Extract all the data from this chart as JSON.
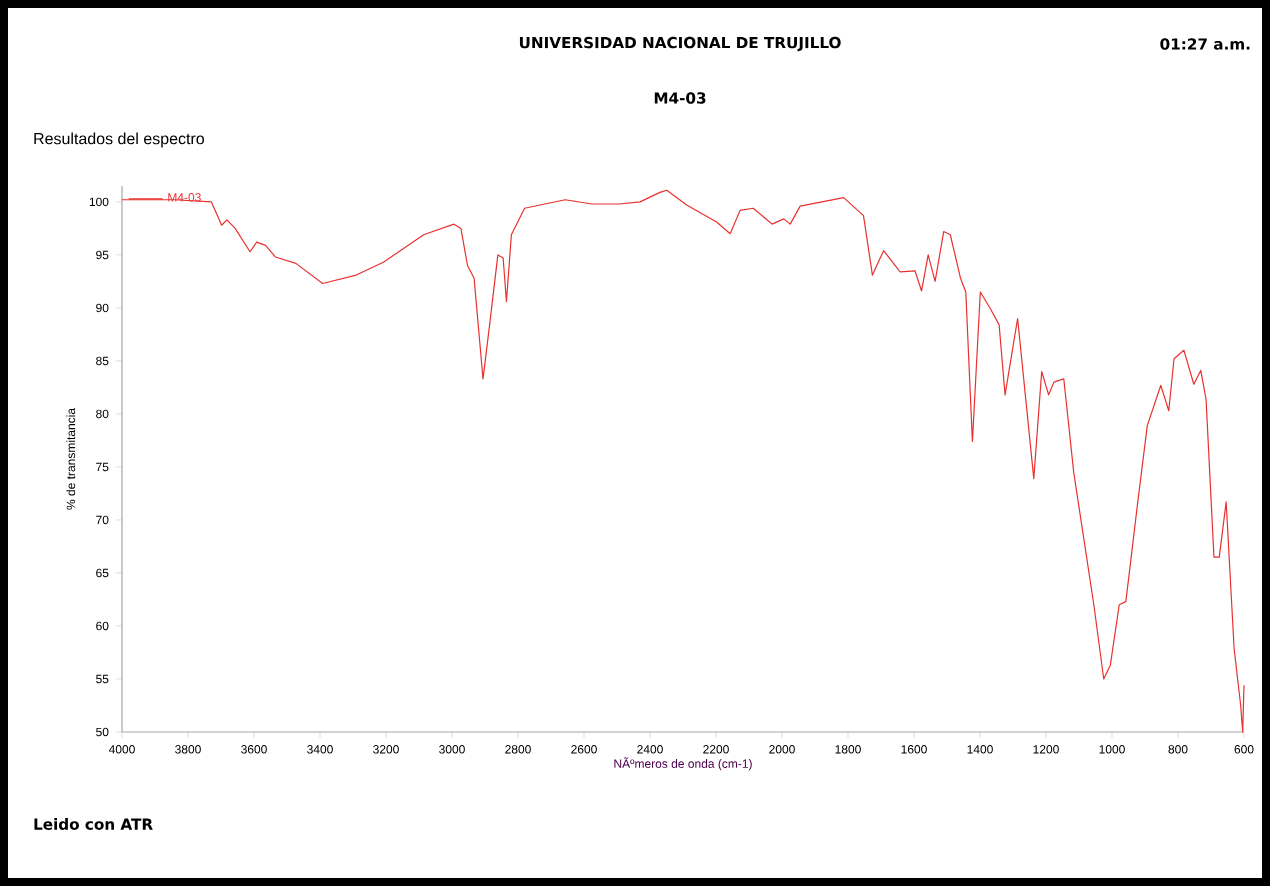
{
  "chart_data": {
    "type": "line",
    "title": "UNIVERSIDAD NACIONAL DE TRUJILLO",
    "subtitle": "M4-03",
    "xlabel": "NÃºmeros de onda (cm-1)",
    "ylabel": "% de transmitancia",
    "annotations": [
      "01:27 a.m.",
      "Resultados del espectro",
      "Leido con ATR"
    ],
    "xlim": [
      4000,
      600
    ],
    "xticks": [
      4000,
      3800,
      3600,
      3400,
      3200,
      3000,
      2800,
      2600,
      2400,
      2200,
      2000,
      1800,
      1600,
      1400,
      1200,
      1000,
      800,
      600
    ],
    "ylim": [
      50,
      101.5
    ],
    "yticks": [
      50,
      55,
      60,
      65,
      70,
      75,
      80,
      85,
      90,
      95,
      100
    ],
    "grid": false,
    "legend": "top left",
    "marker": "none",
    "line_style": "solid",
    "series": [
      {
        "name": "M4-03",
        "color": "#e8312f",
        "x": [
          4000,
          3841,
          3729,
          3698,
          3682,
          3657,
          3612,
          3592,
          3565,
          3535,
          3473,
          3392,
          3290,
          3208,
          3086,
          2994,
          2973,
          2953,
          2933,
          2906,
          2886,
          2861,
          2845,
          2835,
          2820,
          2780,
          2657,
          2576,
          2494,
          2430,
          2370,
          2349,
          2289,
          2198,
          2157,
          2127,
          2087,
          2030,
          1995,
          1975,
          1945,
          1813,
          1753,
          1726,
          1692,
          1642,
          1597,
          1577,
          1557,
          1536,
          1510,
          1490,
          1459,
          1443,
          1423,
          1399,
          1368,
          1342,
          1324,
          1286,
          1237,
          1213,
          1192,
          1176,
          1146,
          1116,
          1055,
          1025,
          1005,
          978,
          958,
          923,
          893,
          852,
          828,
          812,
          782,
          752,
          731,
          715,
          691,
          675,
          654,
          630,
          610,
          604,
          600
        ],
        "values": [
          100.2,
          100.2,
          100,
          97.8,
          98.3,
          97.5,
          95.3,
          96.2,
          95.9,
          94.8,
          94.2,
          92.3,
          93.1,
          94.3,
          96.9,
          97.9,
          97.5,
          94,
          92.8,
          83.3,
          88.4,
          95,
          94.7,
          90.6,
          96.9,
          99.4,
          100.2,
          99.8,
          99.8,
          100,
          100.9,
          101.1,
          99.7,
          98.1,
          97,
          99.2,
          99.4,
          97.9,
          98.4,
          97.9,
          99.6,
          100.4,
          98.7,
          93.1,
          95.4,
          93.4,
          93.5,
          91.6,
          95,
          92.5,
          97.2,
          96.9,
          92.8,
          91.5,
          77.4,
          91.5,
          89.9,
          88.4,
          81.8,
          89,
          73.9,
          84,
          81.8,
          83,
          83.3,
          74.5,
          62,
          55,
          56.3,
          62,
          62.3,
          71.4,
          78.9,
          82.7,
          80.3,
          85.2,
          86,
          82.8,
          84.1,
          81.4,
          66.5,
          66.5,
          71.7,
          57.9,
          52.5,
          50,
          54.4
        ]
      }
    ]
  }
}
